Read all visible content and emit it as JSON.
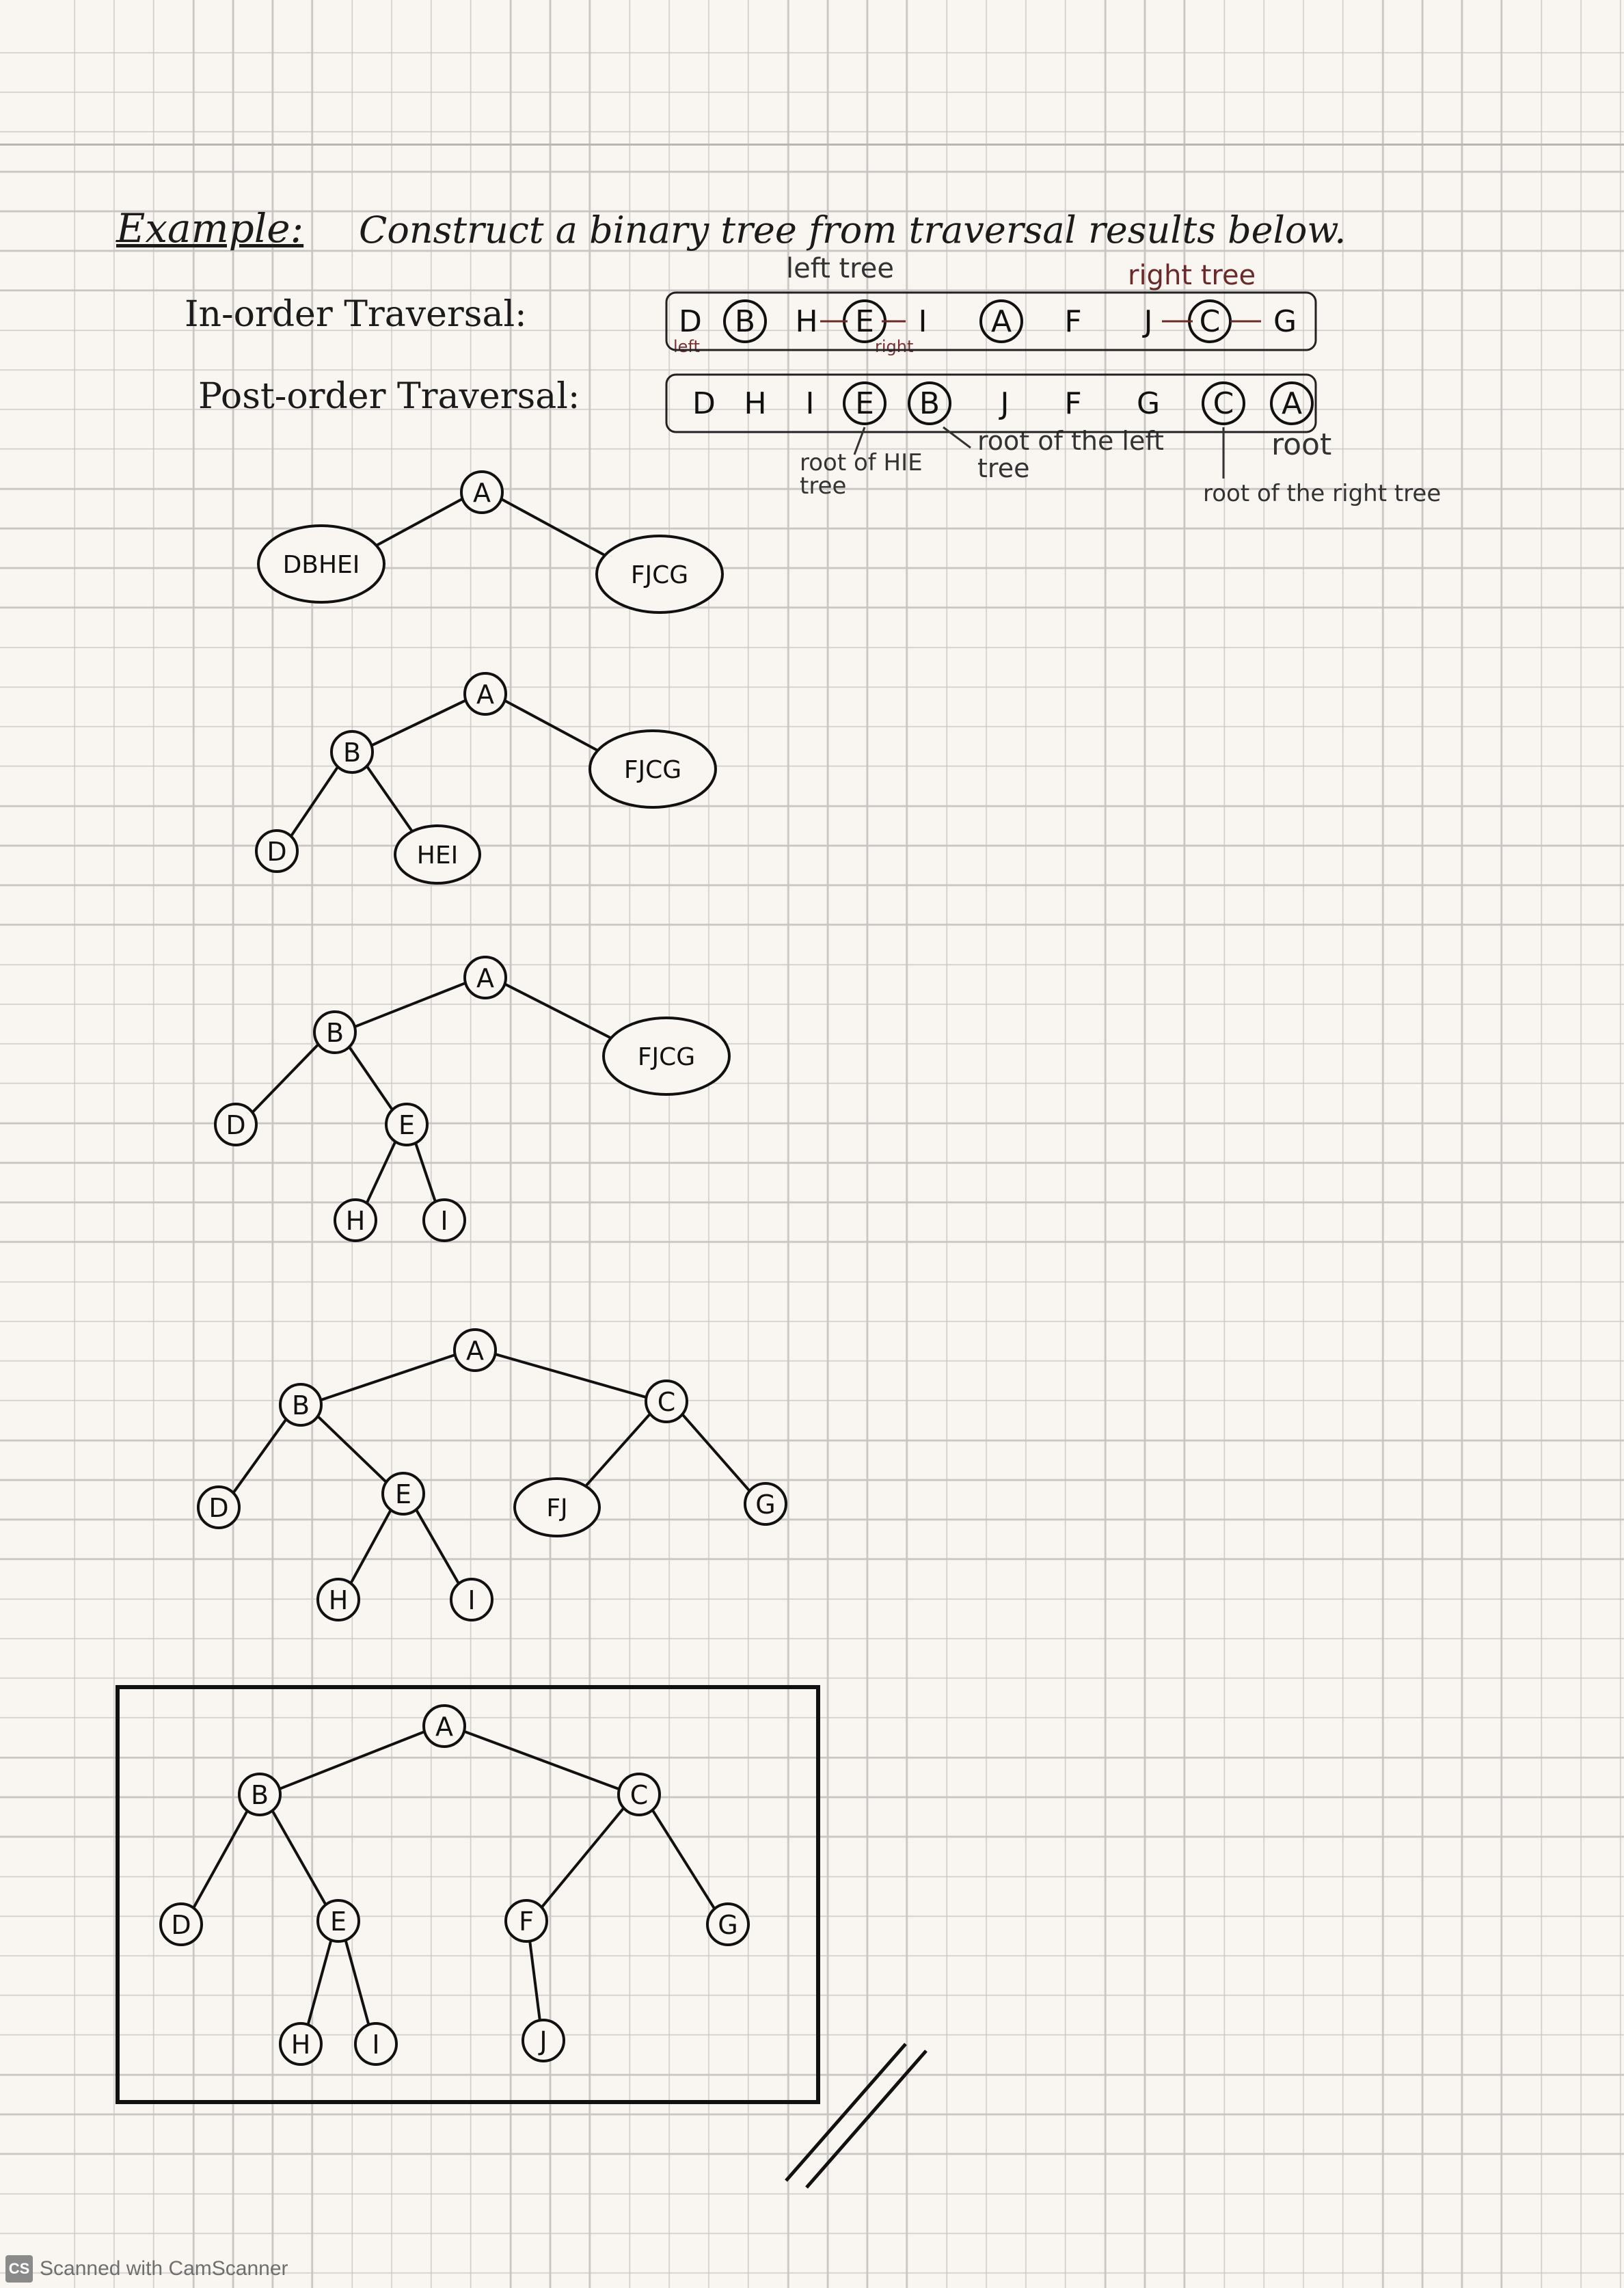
{
  "heading": {
    "label": "Example:",
    "text": "Construct a binary tree from traversal results below."
  },
  "inorder": {
    "label": "In-order Traversal:",
    "sequence": [
      "D",
      "B",
      "H",
      "E",
      "I",
      "A",
      "F",
      "J",
      "C",
      "G"
    ],
    "circled": [
      "B",
      "E",
      "A",
      "C"
    ],
    "left_tree_label": "left tree",
    "right_tree_label": "right tree",
    "left_sub_label": "left",
    "right_sub_label": "right"
  },
  "postorder": {
    "label": "Post-order Traversal:",
    "sequence": [
      "D",
      "H",
      "I",
      "E",
      "B",
      "J",
      "F",
      "G",
      "C",
      "A"
    ],
    "circled": [
      "E",
      "B",
      "C",
      "A"
    ],
    "note_hie": "root of HIE tree",
    "note_left": "root of the left tree",
    "note_root": "root",
    "note_right": "root of the right tree"
  },
  "steps": [
    {
      "nodes": [
        "A",
        "DBHEI",
        "FJCG"
      ],
      "edges": [
        [
          "A",
          "DBHEI"
        ],
        [
          "A",
          "FJCG"
        ]
      ]
    },
    {
      "nodes": [
        "A",
        "B",
        "FJCG",
        "D",
        "HEI"
      ],
      "edges": [
        [
          "A",
          "B"
        ],
        [
          "A",
          "FJCG"
        ],
        [
          "B",
          "D"
        ],
        [
          "B",
          "HEI"
        ]
      ]
    },
    {
      "nodes": [
        "A",
        "B",
        "FJCG",
        "D",
        "E",
        "H",
        "I"
      ],
      "edges": [
        [
          "A",
          "B"
        ],
        [
          "A",
          "FJCG"
        ],
        [
          "B",
          "D"
        ],
        [
          "B",
          "E"
        ],
        [
          "E",
          "H"
        ],
        [
          "E",
          "I"
        ]
      ]
    },
    {
      "nodes": [
        "A",
        "B",
        "C",
        "D",
        "E",
        "FJ",
        "G",
        "H",
        "I"
      ],
      "edges": [
        [
          "A",
          "B"
        ],
        [
          "A",
          "C"
        ],
        [
          "B",
          "D"
        ],
        [
          "B",
          "E"
        ],
        [
          "C",
          "FJ"
        ],
        [
          "C",
          "G"
        ],
        [
          "E",
          "H"
        ],
        [
          "E",
          "I"
        ]
      ]
    },
    {
      "nodes": [
        "A",
        "B",
        "C",
        "D",
        "E",
        "F",
        "G",
        "H",
        "I",
        "J"
      ],
      "edges": [
        [
          "A",
          "B"
        ],
        [
          "A",
          "C"
        ],
        [
          "B",
          "D"
        ],
        [
          "B",
          "E"
        ],
        [
          "C",
          "F"
        ],
        [
          "C",
          "G"
        ],
        [
          "E",
          "H"
        ],
        [
          "E",
          "I"
        ],
        [
          "F",
          "J"
        ]
      ],
      "boxed": true
    }
  ],
  "footer": {
    "badge": "CS",
    "text": "Scanned with CamScanner"
  }
}
